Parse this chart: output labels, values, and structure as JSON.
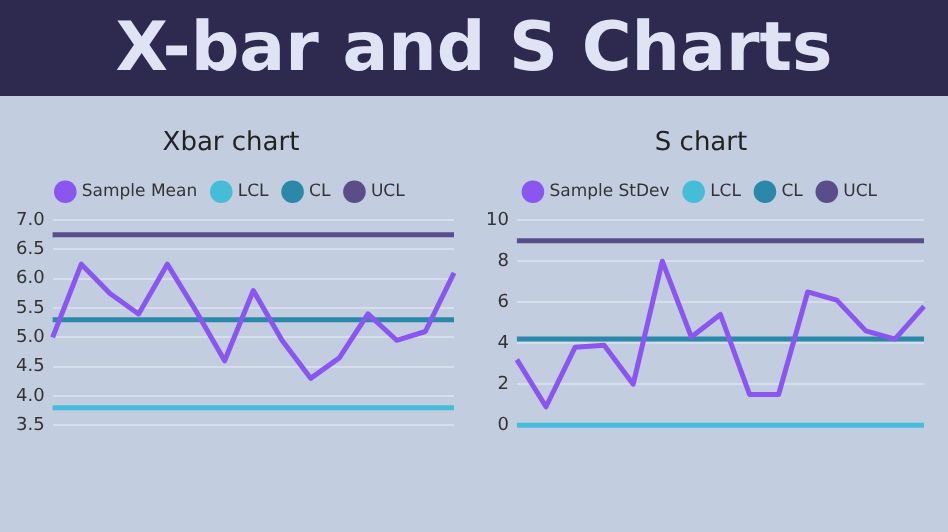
{
  "chart_data": [
    {
      "type": "line",
      "title": "Xbar chart",
      "annotations": [
        "X-bar and S Charts"
      ],
      "categories": [
        null,
        null,
        null,
        null,
        null,
        null,
        null,
        null,
        null,
        null,
        null,
        null,
        null,
        null,
        null
      ],
      "series": [
        {
          "name": "Sample Mean",
          "color": "#8b55f0",
          "values": [
            5.0,
            6.25,
            5.75,
            5.4,
            6.25,
            5.45,
            4.6,
            5.8,
            4.95,
            4.3,
            4.65,
            5.4,
            4.95,
            5.1,
            6.1
          ]
        },
        {
          "name": "LCL",
          "color": "#45bcd8",
          "values": [
            3.8,
            3.8,
            3.8,
            3.8,
            3.8,
            3.8,
            3.8,
            3.8,
            3.8,
            3.8,
            3.8,
            3.8,
            3.8,
            3.8,
            3.8
          ]
        },
        {
          "name": "CL",
          "color": "#2b88a8",
          "values": [
            5.3,
            5.3,
            5.3,
            5.3,
            5.3,
            5.3,
            5.3,
            5.3,
            5.3,
            5.3,
            5.3,
            5.3,
            5.3,
            5.3,
            5.3
          ]
        },
        {
          "name": "UCL",
          "color": "#5a4e8a",
          "values": [
            6.75,
            6.75,
            6.75,
            6.75,
            6.75,
            6.75,
            6.75,
            6.75,
            6.75,
            6.75,
            6.75,
            6.75,
            6.75,
            6.75,
            6.75
          ]
        }
      ],
      "ylim": [
        3.5,
        7.0
      ],
      "yticks": [
        {
          "value": 3.5,
          "label": "3.5"
        },
        {
          "value": 4,
          "label": "4.0"
        },
        {
          "value": 4.5,
          "label": "4.5"
        },
        {
          "value": 5,
          "label": "5.0"
        },
        {
          "value": 5.5,
          "label": "5.5"
        },
        {
          "value": 6,
          "label": "6.0"
        },
        {
          "value": 6.5,
          "label": "6.5"
        },
        {
          "value": 7,
          "label": "7.0"
        }
      ],
      "grid": "y",
      "legend": "top",
      "marker": "none",
      "tick_labels": "y"
    },
    {
      "type": "line",
      "title": "S chart",
      "categories": [
        null,
        null,
        null,
        null,
        null,
        null,
        null,
        null,
        null,
        null,
        null,
        null,
        null,
        null,
        null
      ],
      "series": [
        {
          "name": "Sample StDev",
          "color": "#8b55f0",
          "values": [
            3.2,
            0.9,
            3.8,
            3.9,
            2.0,
            8.0,
            4.3,
            5.4,
            1.5,
            1.5,
            6.5,
            6.1,
            4.6,
            4.2,
            5.8
          ]
        },
        {
          "name": "LCL",
          "color": "#45bcd8",
          "values": [
            0,
            0,
            0,
            0,
            0,
            0,
            0,
            0,
            0,
            0,
            0,
            0,
            0,
            0,
            0
          ]
        },
        {
          "name": "CL",
          "color": "#2b88a8",
          "values": [
            4.2,
            4.2,
            4.2,
            4.2,
            4.2,
            4.2,
            4.2,
            4.2,
            4.2,
            4.2,
            4.2,
            4.2,
            4.2,
            4.2,
            4.2
          ]
        },
        {
          "name": "UCL",
          "color": "#5a4e8a",
          "values": [
            9,
            9,
            9,
            9,
            9,
            9,
            9,
            9,
            9,
            9,
            9,
            9,
            9,
            9,
            9
          ]
        }
      ],
      "ylim": [
        0,
        10
      ],
      "yticks": [
        0,
        2,
        4,
        6,
        8,
        10
      ],
      "grid": "y",
      "legend": "top",
      "marker": "none",
      "tick_labels": "y"
    }
  ]
}
